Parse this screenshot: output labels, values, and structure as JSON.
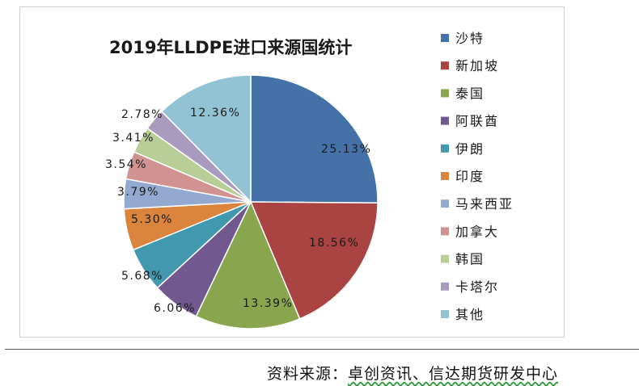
{
  "chart_data": {
    "type": "pie",
    "title": "2019年LLDPE进口来源国统计",
    "unit": "%",
    "slices": [
      {
        "name": "沙特",
        "value": 25.13,
        "label": "25.13%",
        "color": "#4472a8"
      },
      {
        "name": "新加坡",
        "value": 18.56,
        "label": "18.56%",
        "color": "#aa4442"
      },
      {
        "name": "泰国",
        "value": 13.39,
        "label": "13.39%",
        "color": "#89a54e"
      },
      {
        "name": "阿联酋",
        "value": 6.06,
        "label": "6.06%",
        "color": "#71588f"
      },
      {
        "name": "伊朗",
        "value": 5.68,
        "label": "5.68%",
        "color": "#4198af"
      },
      {
        "name": "印度",
        "value": 5.3,
        "label": "5.30%",
        "color": "#db843d"
      },
      {
        "name": "马来西亚",
        "value": 3.79,
        "label": "3.79%",
        "color": "#93a9cf"
      },
      {
        "name": "加拿大",
        "value": 3.54,
        "label": "3.54%",
        "color": "#d19392"
      },
      {
        "name": "韩国",
        "value": 3.41,
        "label": "3.41%",
        "color": "#b9cd96"
      },
      {
        "name": "卡塔尔",
        "value": 2.78,
        "label": "2.78%",
        "color": "#a99bbd"
      },
      {
        "name": "其他",
        "value": 12.36,
        "label": "12.36%",
        "color": "#92c3d4"
      }
    ],
    "legend_position": "right"
  },
  "source": {
    "prefix": "资料来源：",
    "text": "卓创资讯、信达期货研发中心"
  }
}
